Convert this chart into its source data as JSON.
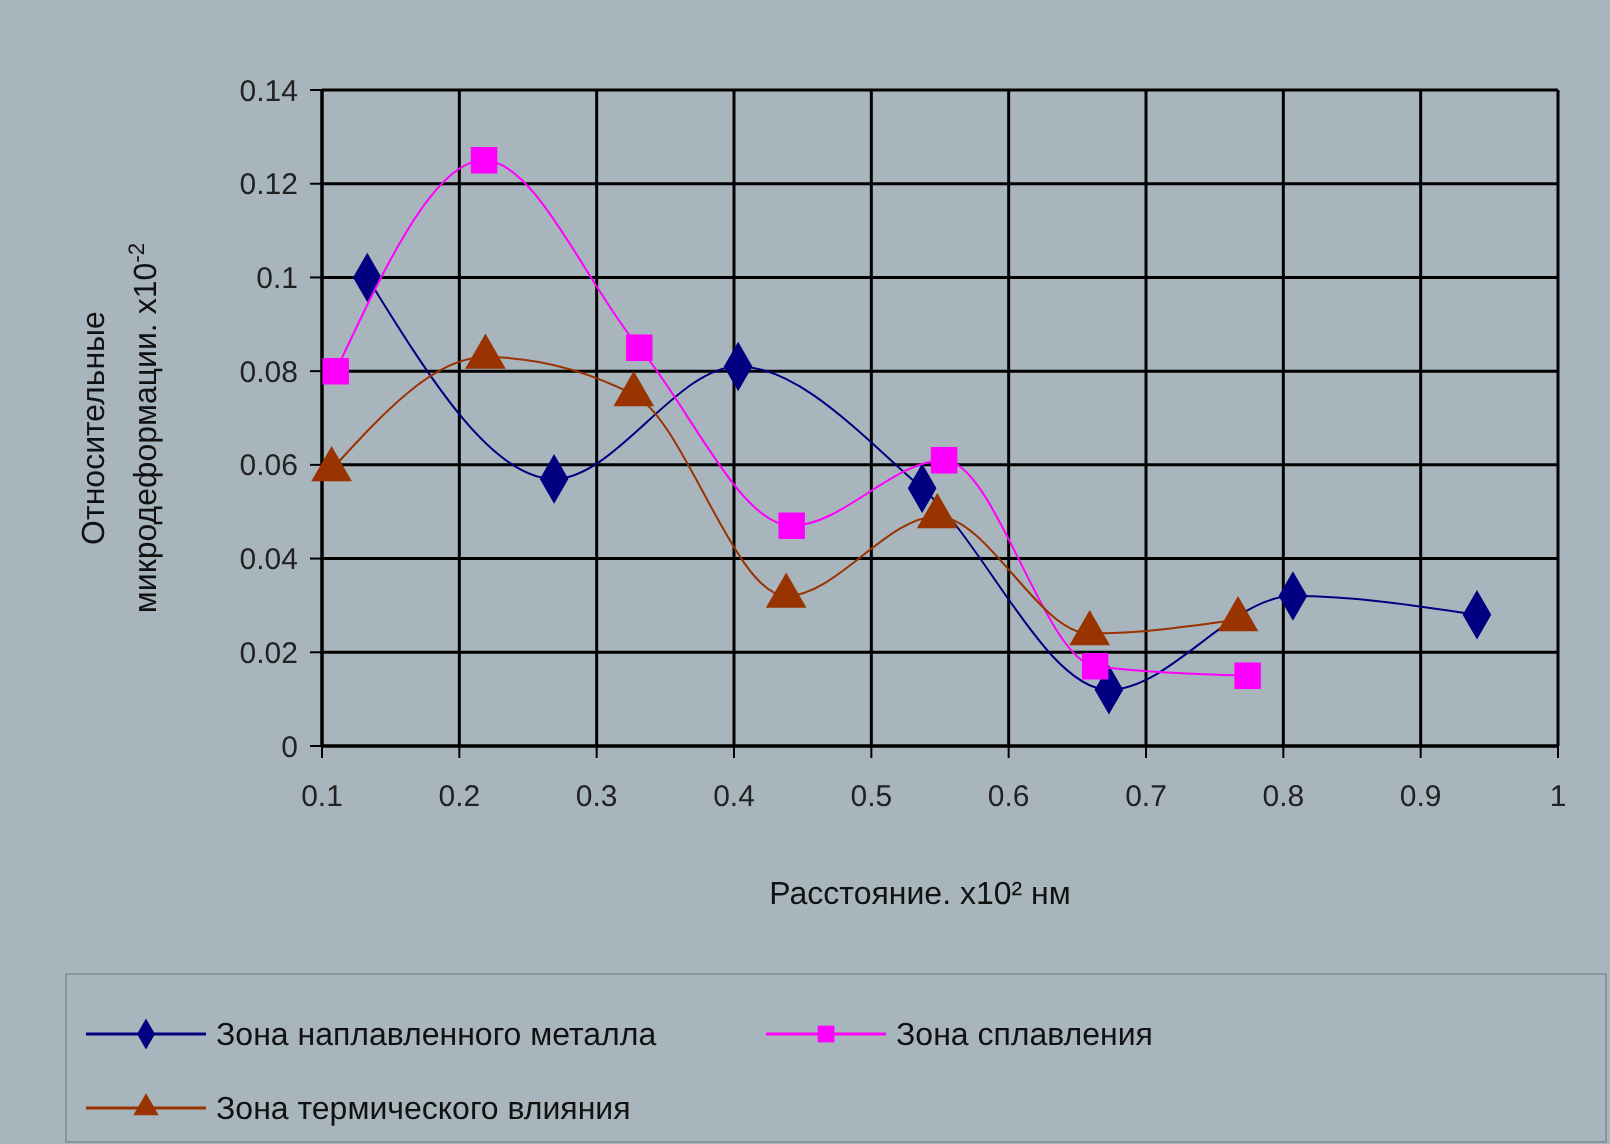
{
  "chart_data": {
    "type": "line",
    "xlabel": "Расстояние. x10² нм",
    "ylabel": "Относительные микродеформации. x10$^{-2}$",
    "xlim": [
      0.1,
      1
    ],
    "xticks": [
      0.1,
      0.2,
      0.3,
      0.4,
      0.5,
      0.6,
      0.7,
      0.8,
      0.9,
      1
    ],
    "ylim": [
      0,
      0.14
    ],
    "yticks": [
      0,
      0.02,
      0.04,
      0.06,
      0.08,
      0.1,
      0.12,
      0.14
    ],
    "grid": true,
    "legend": "bottom",
    "series": [
      {
        "name": "Зона наплавленного металла",
        "color": "#000080",
        "marker": "diamond",
        "x": [
          0.133,
          0.269,
          0.403,
          0.537,
          0.673,
          0.807,
          0.941
        ],
        "values": [
          0.1,
          0.057,
          0.081,
          0.055,
          0.012,
          0.032,
          0.028
        ]
      },
      {
        "name": "Зона сплавления",
        "color": "#ff00ff",
        "marker": "square",
        "x": [
          0.11,
          0.218,
          0.331,
          0.442,
          0.553,
          0.663,
          0.774
        ],
        "values": [
          0.08,
          0.125,
          0.085,
          0.047,
          0.061,
          0.017,
          0.015
        ]
      },
      {
        "name": "Зона термического влияния",
        "color": "#993300",
        "marker": "triangle",
        "x": [
          0.107,
          0.219,
          0.327,
          0.438,
          0.548,
          0.659,
          0.767
        ],
        "values": [
          0.059,
          0.083,
          0.075,
          0.032,
          0.049,
          0.024,
          0.027
        ]
      }
    ]
  }
}
